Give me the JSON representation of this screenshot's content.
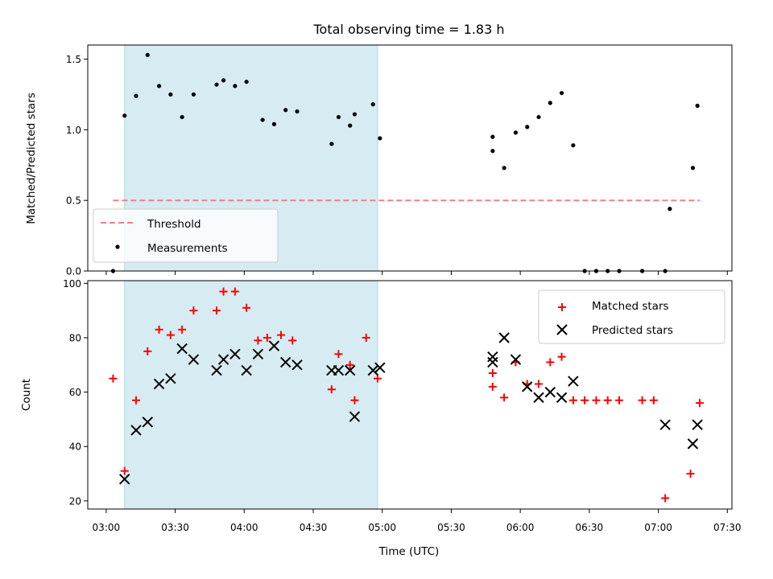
{
  "chart_data": [
    {
      "type": "scatter",
      "title": "Total observing time = 1.83 h",
      "xlabel": "",
      "ylabel": "Matched/Predicted stars",
      "x_unit": "time (UTC, HH:MM)",
      "xlim": [
        "03:00",
        "07:30"
      ],
      "ylim": [
        0,
        1.6
      ],
      "yticks": [
        "0.0",
        "0.5",
        "1.0",
        "1.5"
      ],
      "ytick_values": [
        0,
        0.5,
        1.0,
        1.5
      ],
      "grid": false,
      "legend_position": "lower-left",
      "shaded_span": {
        "start": "03:08",
        "end": "04:58",
        "color": "#add8e6"
      },
      "threshold": {
        "name": "Threshold",
        "value": 0.5,
        "x_start": "03:03",
        "x_end": "07:18",
        "color": "#f08080",
        "style": "dashed"
      },
      "series": [
        {
          "name": "Measurements",
          "color": "#000000",
          "marker": "dot",
          "x": [
            "03:03",
            "03:08",
            "03:13",
            "03:18",
            "03:23",
            "03:28",
            "03:33",
            "03:38",
            "03:48",
            "03:51",
            "03:56",
            "04:01",
            "04:08",
            "04:13",
            "04:18",
            "04:23",
            "04:38",
            "04:41",
            "04:46",
            "04:48",
            "04:56",
            "04:59",
            "05:48",
            "05:48",
            "05:53",
            "05:58",
            "06:03",
            "06:08",
            "06:13",
            "06:18",
            "06:23",
            "06:28",
            "06:33",
            "06:38",
            "06:43",
            "06:53",
            "07:03",
            "07:05",
            "07:15",
            "07:17"
          ],
          "y": [
            0.0,
            1.1,
            1.24,
            1.53,
            1.31,
            1.25,
            1.09,
            1.25,
            1.32,
            1.35,
            1.31,
            1.34,
            1.07,
            1.04,
            1.14,
            1.13,
            0.9,
            1.09,
            1.03,
            1.11,
            1.18,
            0.94,
            0.95,
            0.85,
            0.73,
            0.98,
            1.02,
            1.09,
            1.19,
            1.26,
            0.89,
            0.0,
            0.0,
            0.0,
            0.0,
            0.0,
            0.0,
            0.44,
            0.73,
            1.17
          ]
        }
      ]
    },
    {
      "type": "scatter",
      "title": "",
      "xlabel": "Time (UTC)",
      "ylabel": "Count",
      "x_unit": "time (UTC, HH:MM)",
      "xlim": [
        "03:00",
        "07:30"
      ],
      "xticks": [
        "03:00",
        "03:30",
        "04:00",
        "04:30",
        "05:00",
        "05:30",
        "06:00",
        "06:30",
        "07:00",
        "07:30"
      ],
      "ylim": [
        17,
        101
      ],
      "yticks": [
        "20",
        "40",
        "60",
        "80",
        "100"
      ],
      "ytick_values": [
        20,
        40,
        60,
        80,
        100
      ],
      "grid": false,
      "legend_position": "upper-right",
      "shaded_span": {
        "start": "03:08",
        "end": "04:58",
        "color": "#add8e6"
      },
      "series": [
        {
          "name": "Matched stars",
          "color": "#ff0000",
          "marker": "plus",
          "x": [
            "03:03",
            "03:08",
            "03:13",
            "03:18",
            "03:23",
            "03:28",
            "03:33",
            "03:38",
            "03:48",
            "03:51",
            "03:56",
            "04:01",
            "04:06",
            "04:10",
            "04:16",
            "04:21",
            "04:38",
            "04:41",
            "04:46",
            "04:48",
            "04:53",
            "04:58",
            "05:48",
            "05:48",
            "05:53",
            "05:58",
            "06:03",
            "06:08",
            "06:13",
            "06:18",
            "06:23",
            "06:28",
            "06:33",
            "06:38",
            "06:43",
            "06:53",
            "06:58",
            "07:03",
            "07:14",
            "07:18"
          ],
          "y": [
            65,
            31,
            57,
            75,
            83,
            81,
            83,
            90,
            90,
            97,
            97,
            91,
            79,
            80,
            81,
            79,
            61,
            74,
            70,
            57,
            80,
            65,
            67,
            62,
            58,
            71,
            63,
            63,
            71,
            73,
            57,
            57,
            57,
            57,
            57,
            57,
            57,
            21,
            30,
            56
          ]
        },
        {
          "name": "Predicted stars",
          "color": "#000000",
          "marker": "x",
          "x": [
            "03:08",
            "03:13",
            "03:18",
            "03:23",
            "03:28",
            "03:33",
            "03:38",
            "03:48",
            "03:51",
            "03:56",
            "04:01",
            "04:06",
            "04:13",
            "04:18",
            "04:23",
            "04:38",
            "04:41",
            "04:46",
            "04:48",
            "04:56",
            "04:59",
            "05:48",
            "05:48",
            "05:53",
            "05:58",
            "06:03",
            "06:08",
            "06:13",
            "06:18",
            "06:23",
            "07:03",
            "07:15",
            "07:17"
          ],
          "y": [
            28,
            46,
            49,
            63,
            65,
            76,
            72,
            68,
            72,
            74,
            68,
            74,
            77,
            71,
            70,
            68,
            68,
            68,
            51,
            68,
            69,
            71,
            73,
            80,
            72,
            62,
            58,
            60,
            58,
            64,
            48,
            41,
            48
          ]
        }
      ]
    }
  ]
}
